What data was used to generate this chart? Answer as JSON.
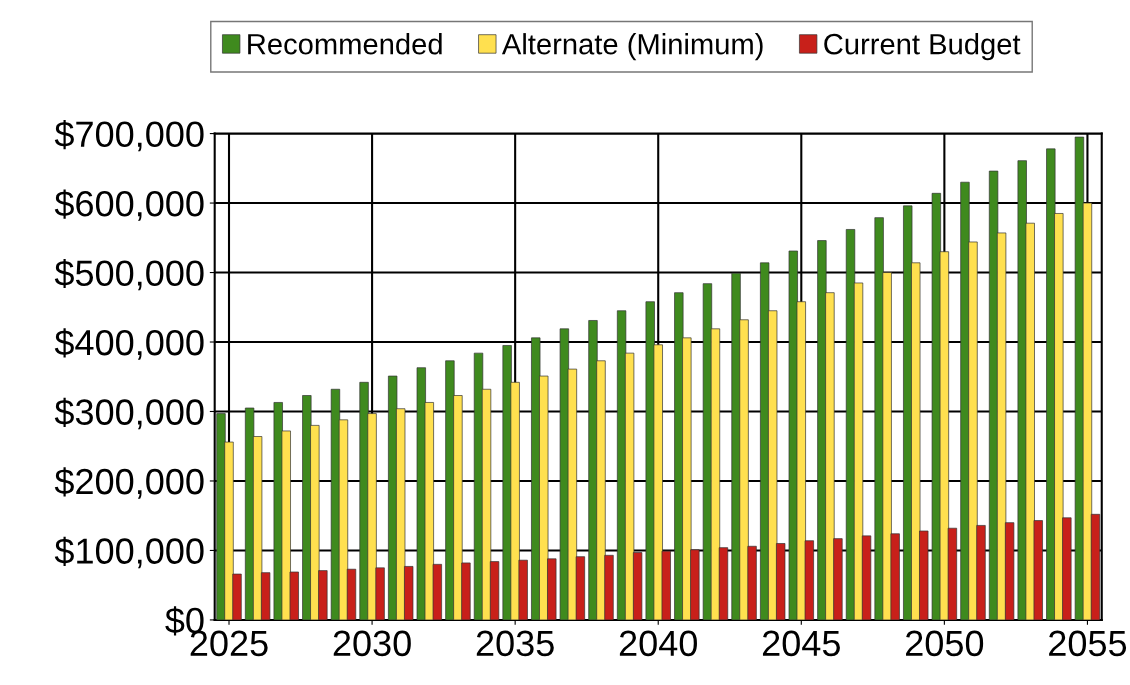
{
  "chart_data": {
    "type": "bar",
    "categories": [
      "2025",
      null,
      null,
      null,
      null,
      "2030",
      null,
      null,
      null,
      null,
      "2035",
      null,
      null,
      null,
      null,
      "2040",
      null,
      null,
      null,
      null,
      "2045",
      null,
      null,
      null,
      null,
      "2050",
      null,
      null,
      null,
      null,
      "2055"
    ],
    "series": [
      {
        "name": "Recommended",
        "color": "#3f8a1e",
        "values": [
          297000,
          305000,
          313000,
          323000,
          332000,
          342000,
          351000,
          363000,
          373000,
          384000,
          395000,
          406000,
          419000,
          431000,
          445000,
          458000,
          471000,
          484000,
          499000,
          514000,
          531000,
          546000,
          562000,
          579000,
          596000,
          614000,
          630000,
          646000,
          661000,
          678000,
          695000
        ]
      },
      {
        "name": "Alternate (Minimum)",
        "color": "#ffe04f",
        "values": [
          256000,
          264000,
          272000,
          280000,
          288000,
          297000,
          304000,
          313000,
          323000,
          332000,
          342000,
          351000,
          361000,
          373000,
          384000,
          396000,
          406000,
          419000,
          432000,
          445000,
          458000,
          471000,
          485000,
          500000,
          514000,
          530000,
          544000,
          557000,
          571000,
          585000,
          600000
        ]
      },
      {
        "name": "Current Budget",
        "color": "#c8201a",
        "values": [
          66000,
          68000,
          69000,
          71000,
          73000,
          75000,
          77000,
          80000,
          82000,
          84000,
          86000,
          88000,
          91000,
          93000,
          97000,
          99000,
          101000,
          104000,
          106000,
          110000,
          114000,
          117000,
          121000,
          124000,
          128000,
          132000,
          136000,
          140000,
          143000,
          147000,
          152000
        ]
      }
    ],
    "ylim": [
      0,
      700000
    ],
    "yticks": [
      {
        "value": 0,
        "label": "$0"
      },
      {
        "value": 100000,
        "label": "$100,000"
      },
      {
        "value": 200000,
        "label": "$200,000"
      },
      {
        "value": 300000,
        "label": "$300,000"
      },
      {
        "value": 400000,
        "label": "$400,000"
      },
      {
        "value": 500000,
        "label": "$500,000"
      },
      {
        "value": 600000,
        "label": "$600,000"
      },
      {
        "value": 700000,
        "label": "$700,000"
      }
    ],
    "grid": true,
    "legend": "top"
  }
}
